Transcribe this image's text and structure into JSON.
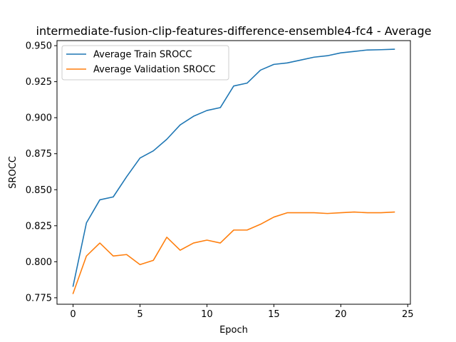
{
  "chart_data": {
    "type": "line",
    "title": "intermediate-fusion-clip-features-difference-ensemble4-fc4 - Average",
    "xlabel": "Epoch",
    "ylabel": "SROCC",
    "xlim": [
      -1.2,
      25.2
    ],
    "ylim": [
      0.7705,
      0.9535
    ],
    "xticks": [
      0,
      5,
      10,
      15,
      20,
      25
    ],
    "xtick_labels": [
      "0",
      "5",
      "10",
      "15",
      "20",
      "25"
    ],
    "yticks": [
      0.775,
      0.8,
      0.825,
      0.85,
      0.875,
      0.9,
      0.925,
      0.95
    ],
    "ytick_labels": [
      "0.775",
      "0.800",
      "0.825",
      "0.850",
      "0.875",
      "0.900",
      "0.925",
      "0.950"
    ],
    "grid": false,
    "legend_position": "upper-left",
    "x": [
      0,
      1,
      2,
      3,
      4,
      5,
      6,
      7,
      8,
      9,
      10,
      11,
      12,
      13,
      14,
      15,
      16,
      17,
      18,
      19,
      20,
      21,
      22,
      23,
      24
    ],
    "series": [
      {
        "name": "Average Train SROCC",
        "color": "#1f77b4",
        "values": [
          0.783,
          0.827,
          0.843,
          0.845,
          0.859,
          0.872,
          0.877,
          0.885,
          0.895,
          0.901,
          0.905,
          0.907,
          0.922,
          0.924,
          0.933,
          0.937,
          0.938,
          0.94,
          0.942,
          0.943,
          0.945,
          0.946,
          0.947,
          0.9472,
          0.9475
        ]
      },
      {
        "name": "Average Validation SROCC",
        "color": "#ff7f0e",
        "values": [
          0.778,
          0.804,
          0.813,
          0.804,
          0.805,
          0.798,
          0.801,
          0.817,
          0.808,
          0.813,
          0.815,
          0.813,
          0.822,
          0.822,
          0.826,
          0.831,
          0.834,
          0.834,
          0.834,
          0.8335,
          0.834,
          0.8345,
          0.834,
          0.834,
          0.8345
        ]
      }
    ]
  }
}
